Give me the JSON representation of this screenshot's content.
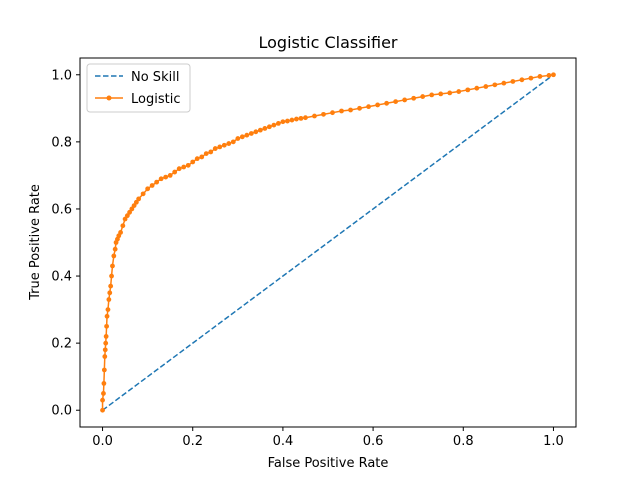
{
  "chart_data": {
    "type": "line",
    "title": "Logistic Classifier",
    "xlabel": "False Positive Rate",
    "ylabel": "True Positive Rate",
    "xlim": [
      -0.05,
      1.05
    ],
    "ylim": [
      -0.05,
      1.05
    ],
    "xticks": [
      "0.0",
      "0.2",
      "0.4",
      "0.6",
      "0.8",
      "1.0"
    ],
    "yticks": [
      "0.0",
      "0.2",
      "0.4",
      "0.6",
      "0.8",
      "1.0"
    ],
    "grid": false,
    "legend_position": "upper-left",
    "series": [
      {
        "name": "No Skill",
        "color": "#1f77b4",
        "style": "dashed",
        "marker": "none",
        "x": [
          0.0,
          1.0
        ],
        "y": [
          0.0,
          1.0
        ]
      },
      {
        "name": "Logistic",
        "color": "#ff7f0e",
        "style": "solid",
        "marker": "dot",
        "x": [
          0.0,
          0.0,
          0.002,
          0.003,
          0.004,
          0.005,
          0.006,
          0.007,
          0.008,
          0.009,
          0.01,
          0.012,
          0.014,
          0.016,
          0.018,
          0.02,
          0.022,
          0.025,
          0.028,
          0.03,
          0.033,
          0.036,
          0.04,
          0.045,
          0.05,
          0.055,
          0.06,
          0.065,
          0.07,
          0.075,
          0.08,
          0.09,
          0.1,
          0.11,
          0.12,
          0.13,
          0.14,
          0.15,
          0.16,
          0.17,
          0.18,
          0.19,
          0.2,
          0.21,
          0.22,
          0.23,
          0.24,
          0.25,
          0.26,
          0.27,
          0.28,
          0.29,
          0.3,
          0.31,
          0.32,
          0.33,
          0.34,
          0.35,
          0.36,
          0.37,
          0.38,
          0.39,
          0.4,
          0.41,
          0.42,
          0.43,
          0.44,
          0.45,
          0.47,
          0.49,
          0.51,
          0.53,
          0.55,
          0.57,
          0.59,
          0.61,
          0.63,
          0.65,
          0.67,
          0.69,
          0.71,
          0.73,
          0.75,
          0.77,
          0.79,
          0.81,
          0.83,
          0.85,
          0.87,
          0.89,
          0.91,
          0.93,
          0.95,
          0.97,
          0.99,
          1.0
        ],
        "y": [
          0.0,
          0.03,
          0.05,
          0.08,
          0.12,
          0.16,
          0.18,
          0.2,
          0.22,
          0.25,
          0.28,
          0.3,
          0.33,
          0.35,
          0.37,
          0.4,
          0.43,
          0.46,
          0.48,
          0.5,
          0.51,
          0.52,
          0.53,
          0.55,
          0.57,
          0.58,
          0.59,
          0.6,
          0.61,
          0.62,
          0.63,
          0.645,
          0.66,
          0.67,
          0.68,
          0.69,
          0.695,
          0.7,
          0.71,
          0.72,
          0.725,
          0.73,
          0.74,
          0.75,
          0.755,
          0.765,
          0.77,
          0.78,
          0.785,
          0.79,
          0.795,
          0.8,
          0.81,
          0.815,
          0.82,
          0.825,
          0.83,
          0.835,
          0.84,
          0.845,
          0.85,
          0.855,
          0.86,
          0.862,
          0.865,
          0.868,
          0.87,
          0.872,
          0.877,
          0.882,
          0.887,
          0.892,
          0.895,
          0.9,
          0.905,
          0.91,
          0.915,
          0.92,
          0.925,
          0.93,
          0.935,
          0.94,
          0.943,
          0.946,
          0.95,
          0.955,
          0.96,
          0.965,
          0.97,
          0.975,
          0.98,
          0.985,
          0.99,
          0.995,
          0.998,
          1.0
        ]
      }
    ]
  }
}
